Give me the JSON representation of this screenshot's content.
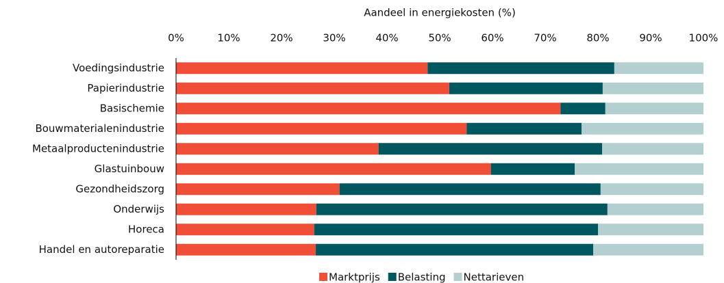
{
  "chart_data": {
    "type": "stacked_barh",
    "x_label": "Aandeel in energiekosten (%)",
    "categories": [
      "Voedingsindustrie",
      "Papierindustrie",
      "Basischemie",
      "Bouwmaterialenindustrie",
      "Metaalproductenindustrie",
      "Glastuinbouw",
      "Gezondheidszorg",
      "Onderwijs",
      "Horeca",
      "Handel en autoreparatie"
    ],
    "series": [
      {
        "name": "Marktprijs",
        "color": "#f04e37",
        "values": [
          47.7,
          51.8,
          72.9,
          55.1,
          38.4,
          59.7,
          31.0,
          26.6,
          26.2,
          26.5
        ]
      },
      {
        "name": "Belasting",
        "color": "#00575f",
        "values": [
          35.4,
          29.1,
          8.5,
          21.8,
          42.4,
          15.9,
          49.5,
          55.2,
          53.8,
          52.6
        ]
      },
      {
        "name": "Nettarieven",
        "color": "#b3cfcf",
        "values": [
          16.9,
          19.1,
          18.6,
          23.1,
          19.2,
          24.4,
          19.5,
          18.2,
          20.0,
          20.9
        ]
      }
    ],
    "xlim": [
      0,
      100
    ],
    "xticks": [
      {
        "value": 0,
        "label": "0%"
      },
      {
        "value": 10,
        "label": "10%"
      },
      {
        "value": 20,
        "label": "20%"
      },
      {
        "value": 30,
        "label": "30%"
      },
      {
        "value": 40,
        "label": "40%"
      },
      {
        "value": 50,
        "label": "50%"
      },
      {
        "value": 60,
        "label": "60%"
      },
      {
        "value": 70,
        "label": "70%"
      },
      {
        "value": 80,
        "label": "80%"
      },
      {
        "value": 90,
        "label": "90%"
      },
      {
        "value": 100,
        "label": "100%"
      }
    ],
    "legend": "bottom"
  }
}
